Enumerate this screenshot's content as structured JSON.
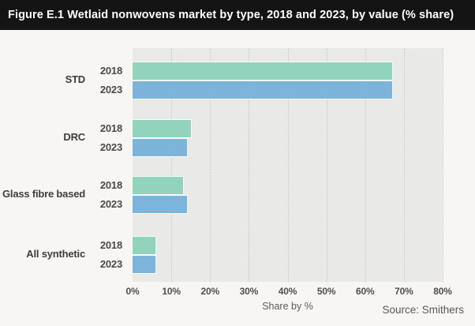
{
  "figure": {
    "title": "Figure E.1 Wetlaid nonwovens market by type, 2018 and 2023, by value (% share)",
    "source": "Source: Smithers"
  },
  "chart_data": {
    "type": "bar",
    "orientation": "horizontal",
    "title": "Wetlaid nonwovens market by type, 2018 and 2023, by value (% share)",
    "categories": [
      "STD",
      "DRC",
      "Glass fibre based",
      "All synthetic"
    ],
    "series": [
      {
        "name": "2018",
        "color": "#92d3be",
        "values": [
          67,
          15,
          13,
          6
        ]
      },
      {
        "name": "2023",
        "color": "#7db4dc",
        "values": [
          67,
          14,
          14,
          6
        ]
      }
    ],
    "xlabel": "Share by %",
    "x_ticks": [
      "0%",
      "10%",
      "20%",
      "30%",
      "40%",
      "50%",
      "60%",
      "70%",
      "80%"
    ],
    "xlim": [
      0,
      80
    ],
    "grid": "vertical-dotted",
    "plot_bg": "#e9e9e8",
    "legend": "none (years labelled beside each bar)"
  }
}
